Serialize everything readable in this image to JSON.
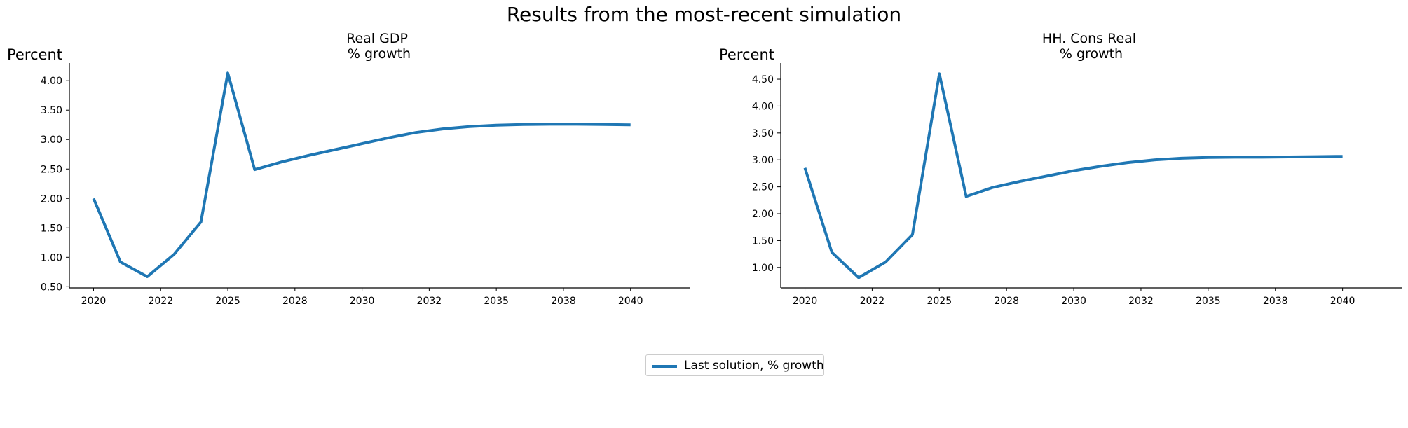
{
  "figure": {
    "suptitle": "Results from the most-recent simulation",
    "legend_label": "Last solution, % growth",
    "series_color": "#1f77b4"
  },
  "chart_data": [
    {
      "type": "line",
      "title_line1": "Real GDP",
      "title_line2": "% growth",
      "ylabel": "Percent",
      "x_ticks": [
        "2020",
        "2022",
        "2025",
        "2028",
        "2030",
        "2032",
        "2035",
        "2038",
        "2040"
      ],
      "y_ticks": [
        "0.50",
        "1.00",
        "1.50",
        "2.00",
        "2.50",
        "3.00",
        "3.50",
        "4.00"
      ],
      "xlim": [
        2019.1,
        2042.2
      ],
      "ylim": [
        0.48,
        4.3
      ],
      "legend": "bottom-center",
      "grid": false,
      "series": [
        {
          "name": "Last solution, % growth",
          "x": [
            2020,
            2021,
            2022,
            2023,
            2024,
            2025,
            2026,
            2027,
            2028,
            2029,
            2030,
            2031,
            2032,
            2033,
            2034,
            2035,
            2036,
            2037,
            2038,
            2039,
            2040
          ],
          "values": [
            2.0,
            0.92,
            0.67,
            1.05,
            1.6,
            4.13,
            2.49,
            2.62,
            2.73,
            2.83,
            2.93,
            3.03,
            3.12,
            3.18,
            3.22,
            3.245,
            3.255,
            3.26,
            3.26,
            3.255,
            3.25
          ]
        }
      ]
    },
    {
      "type": "line",
      "title_line1": "HH. Cons Real",
      "title_line2": "% growth",
      "ylabel": "Percent",
      "x_ticks": [
        "2020",
        "2022",
        "2025",
        "2028",
        "2030",
        "2032",
        "2035",
        "2038",
        "2040"
      ],
      "y_ticks": [
        "1.00",
        "1.50",
        "2.00",
        "2.50",
        "3.00",
        "3.50",
        "4.00",
        "4.50"
      ],
      "xlim": [
        2019.1,
        2042.2
      ],
      "ylim": [
        0.62,
        4.8
      ],
      "legend": "bottom-center",
      "grid": false,
      "series": [
        {
          "name": "Last solution, % growth",
          "x": [
            2020,
            2021,
            2022,
            2023,
            2024,
            2025,
            2026,
            2027,
            2028,
            2029,
            2030,
            2031,
            2032,
            2033,
            2034,
            2035,
            2036,
            2037,
            2038,
            2039,
            2040
          ],
          "values": [
            2.85,
            1.28,
            0.81,
            1.1,
            1.61,
            4.6,
            2.32,
            2.49,
            2.6,
            2.7,
            2.8,
            2.88,
            2.95,
            3.0,
            3.03,
            3.045,
            3.05,
            3.05,
            3.055,
            3.06,
            3.065
          ]
        }
      ]
    }
  ]
}
